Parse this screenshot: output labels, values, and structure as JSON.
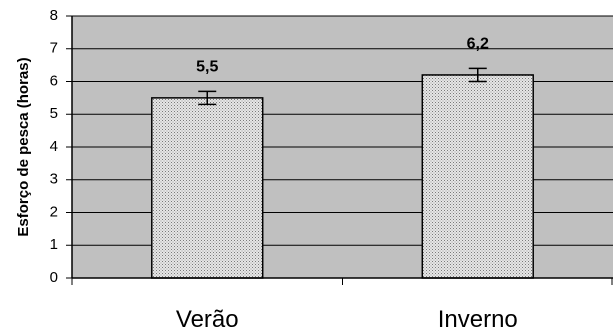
{
  "chart_data": {
    "type": "bar",
    "categories": [
      "Verão",
      "Inverno"
    ],
    "values": [
      5.5,
      6.2
    ],
    "value_labels": [
      "5,5",
      "6,2"
    ],
    "error": [
      0.2,
      0.2
    ],
    "ylabel": "Esforço de pesca (horas)",
    "ylim": [
      0,
      8
    ],
    "yticks": [
      0,
      1,
      2,
      3,
      4,
      5,
      6,
      7,
      8
    ],
    "grid": true,
    "legend": "none",
    "colors": {
      "plot_background": "#c0c0c0",
      "bar_fill": "#d6d6d6",
      "bar_stroke": "#000000",
      "gridline": "#000000"
    }
  }
}
